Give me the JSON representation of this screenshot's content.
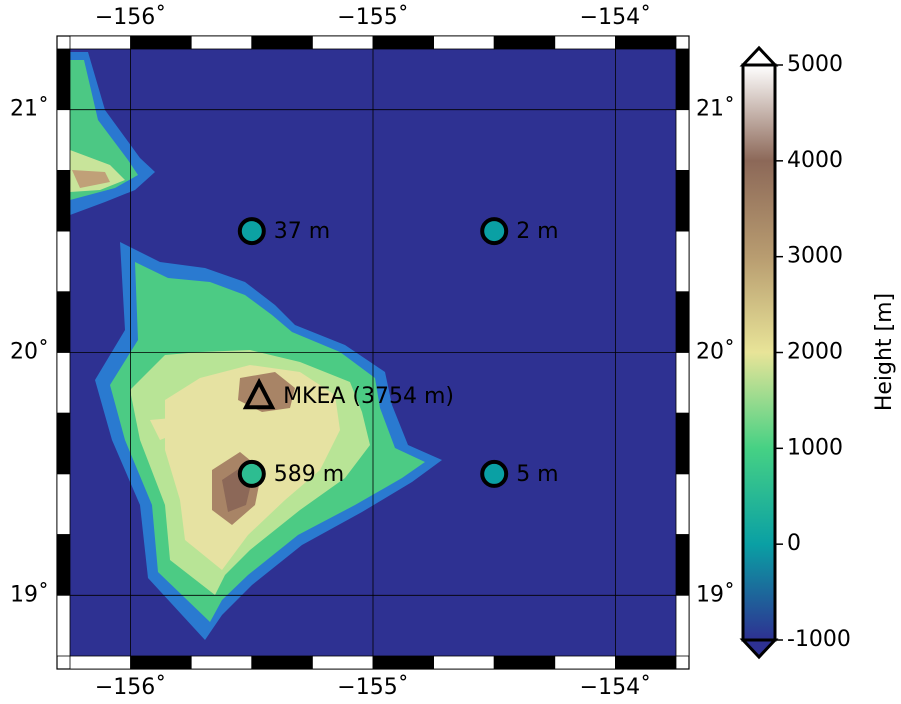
{
  "map": {
    "lonlim": [
      -156.25,
      -153.75
    ],
    "latlim": [
      18.75,
      21.25
    ],
    "lon_ticks": [
      {
        "value": -156,
        "label": "−156˚"
      },
      {
        "value": -155,
        "label": "−155˚"
      },
      {
        "value": -154,
        "label": "−154˚"
      }
    ],
    "lat_ticks": [
      {
        "value": 19,
        "label": "19˚"
      },
      {
        "value": 20,
        "label": "20˚"
      },
      {
        "value": 21,
        "label": "21˚"
      }
    ],
    "grid": true,
    "frame_step": 0.25,
    "points": [
      {
        "lon": -155.5,
        "lat": 20.5,
        "value": 37,
        "label": "37 m",
        "marker": "circle"
      },
      {
        "lon": -154.5,
        "lat": 20.5,
        "value": 2,
        "label": "2 m",
        "marker": "circle"
      },
      {
        "lon": -155.5,
        "lat": 19.5,
        "value": 589,
        "label": "589 m",
        "marker": "circle"
      },
      {
        "lon": -154.5,
        "lat": 19.5,
        "value": 5,
        "label": "5 m",
        "marker": "circle"
      },
      {
        "lon": -155.47,
        "lat": 19.82,
        "label": "MKEA (3754 m)",
        "marker": "triangle"
      }
    ],
    "colorbar": {
      "label": "Height [m]",
      "lim": [
        -1000,
        5000
      ],
      "ticks": [
        5000,
        4000,
        3000,
        2000,
        1000,
        0,
        -1000
      ],
      "colormap": [
        "#2e3192",
        "#0aa0a4",
        "#46d184",
        "#e8e498",
        "#b89c70",
        "#8c6858",
        "#ffffff"
      ]
    }
  }
}
